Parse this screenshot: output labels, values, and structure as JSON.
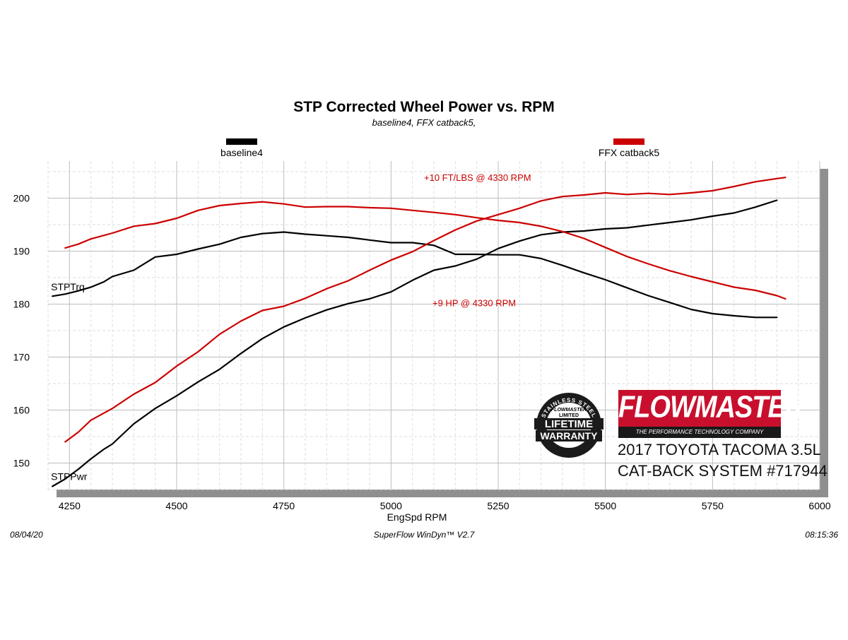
{
  "chart_data": {
    "type": "line",
    "title": "STP Corrected Wheel Power vs. RPM",
    "subtitle": "baseline4,  FFX catback5,",
    "xlabel": "EngSpd  RPM",
    "xlim": [
      4200,
      6000
    ],
    "ylim": [
      145,
      207
    ],
    "xticks": [
      "4250",
      "4500",
      "4750",
      "5000",
      "5250",
      "5500",
      "5750",
      "6000"
    ],
    "yticks": [
      "150",
      "160",
      "170",
      "180",
      "190",
      "200"
    ],
    "grid": true,
    "legend": [
      {
        "name": "baseline4",
        "color": "#000000"
      },
      {
        "name": "FFX catback5",
        "color": "#cc0000"
      }
    ],
    "series": [
      {
        "name": "baseline4",
        "quantity": "STPTrq",
        "color": "#000000",
        "x": [
          4210,
          4240,
          4270,
          4300,
          4330,
          4350,
          4400,
          4450,
          4500,
          4550,
          4600,
          4650,
          4700,
          4750,
          4800,
          4850,
          4900,
          4950,
          5000,
          5050,
          5100,
          5150,
          5200,
          5250,
          5300,
          5350,
          5400,
          5450,
          5500,
          5550,
          5600,
          5650,
          5700,
          5750,
          5800,
          5850,
          5900
        ],
        "y": [
          181.5,
          181.9,
          182.5,
          183.2,
          184.2,
          185.2,
          186.4,
          188.9,
          189.4,
          190.4,
          191.3,
          192.6,
          193.3,
          193.6,
          193.2,
          192.9,
          192.6,
          192.1,
          191.6,
          191.6,
          191.1,
          189.4,
          189.4,
          189.3,
          189.3,
          188.6,
          187.3,
          185.9,
          184.6,
          183.1,
          181.6,
          180.3,
          179.0,
          178.2,
          177.8,
          177.5,
          177.5
        ]
      },
      {
        "name": "baseline4",
        "quantity": "STPPwr",
        "color": "#000000",
        "x": [
          4210,
          4240,
          4270,
          4300,
          4330,
          4350,
          4400,
          4450,
          4500,
          4550,
          4600,
          4650,
          4700,
          4750,
          4800,
          4850,
          4900,
          4950,
          5000,
          5050,
          5100,
          5150,
          5200,
          5250,
          5300,
          5350,
          5400,
          5450,
          5500,
          5550,
          5600,
          5650,
          5700,
          5750,
          5800,
          5850,
          5900
        ],
        "y": [
          145.6,
          147.0,
          148.8,
          150.8,
          152.6,
          153.6,
          157.4,
          160.3,
          162.7,
          165.3,
          167.7,
          170.7,
          173.5,
          175.7,
          177.4,
          178.9,
          180.1,
          181.0,
          182.3,
          184.5,
          186.4,
          187.2,
          188.5,
          190.5,
          191.9,
          193.1,
          193.6,
          193.8,
          194.2,
          194.4,
          194.9,
          195.4,
          195.9,
          196.6,
          197.2,
          198.3,
          199.6
        ]
      },
      {
        "name": "FFX catback5",
        "quantity": "STPTrq",
        "color": "#cc0000",
        "x": [
          4240,
          4270,
          4300,
          4350,
          4400,
          4450,
          4500,
          4550,
          4600,
          4650,
          4700,
          4750,
          4800,
          4850,
          4900,
          4950,
          5000,
          5050,
          5100,
          5150,
          5200,
          5250,
          5300,
          5350,
          5400,
          5450,
          5500,
          5550,
          5600,
          5650,
          5700,
          5750,
          5800,
          5850,
          5900,
          5920
        ],
        "y": [
          190.6,
          191.3,
          192.3,
          193.4,
          194.7,
          195.2,
          196.2,
          197.7,
          198.6,
          199.0,
          199.3,
          198.9,
          198.3,
          198.4,
          198.4,
          198.2,
          198.1,
          197.7,
          197.3,
          196.9,
          196.3,
          195.8,
          195.4,
          194.7,
          193.7,
          192.4,
          190.7,
          189.0,
          187.6,
          186.3,
          185.2,
          184.2,
          183.2,
          182.6,
          181.6,
          181.0
        ]
      },
      {
        "name": "FFX catback5",
        "quantity": "STPPwr",
        "color": "#cc0000",
        "x": [
          4240,
          4270,
          4300,
          4350,
          4400,
          4450,
          4500,
          4550,
          4600,
          4650,
          4700,
          4750,
          4800,
          4850,
          4900,
          4950,
          5000,
          5050,
          5100,
          5150,
          5200,
          5250,
          5300,
          5350,
          5400,
          5450,
          5500,
          5550,
          5600,
          5650,
          5700,
          5750,
          5800,
          5850,
          5900,
          5920
        ],
        "y": [
          154.0,
          155.8,
          158.1,
          160.3,
          163.0,
          165.2,
          168.3,
          171.0,
          174.3,
          176.8,
          178.8,
          179.6,
          181.1,
          182.9,
          184.4,
          186.4,
          188.3,
          189.9,
          192.0,
          194.0,
          195.7,
          196.9,
          198.1,
          199.5,
          200.3,
          200.6,
          201.0,
          200.7,
          200.9,
          200.7,
          201.0,
          201.4,
          202.2,
          203.1,
          203.7,
          203.9
        ]
      }
    ],
    "curve_labels": [
      {
        "text": "STPTrq",
        "x": 4210,
        "y": 182.6
      },
      {
        "text": "STPPwr",
        "x": 4210,
        "y": 146.8
      }
    ],
    "annotations": [
      {
        "text": "+10 FT/LBS @ 4330 RPM",
        "x": 4330,
        "y": 203.3,
        "color": "#cc0000"
      },
      {
        "text": "+9 HP @ 4330 RPM",
        "x": 4330,
        "y": 179.6,
        "color": "#cc0000"
      }
    ]
  },
  "footer": {
    "date": "08/04/20",
    "software": "SuperFlow WinDyn™  V2.7",
    "time": "08:15:36"
  },
  "branding": {
    "brand_name": "FLOWMASTER",
    "brand_tagline": "THE PERFORMANCE TECHNOLOGY COMPANY",
    "brand_color": "#c8102e",
    "badge_lines": [
      "STAINLESS STEEL",
      "LIFETIME",
      "WARRANTY",
      "FLOWMASTER",
      "LIMITED"
    ],
    "vehicle_line_1": "2017 TOYOTA TACOMA 3.5L",
    "vehicle_line_2": "CAT-BACK SYSTEM #717944"
  }
}
